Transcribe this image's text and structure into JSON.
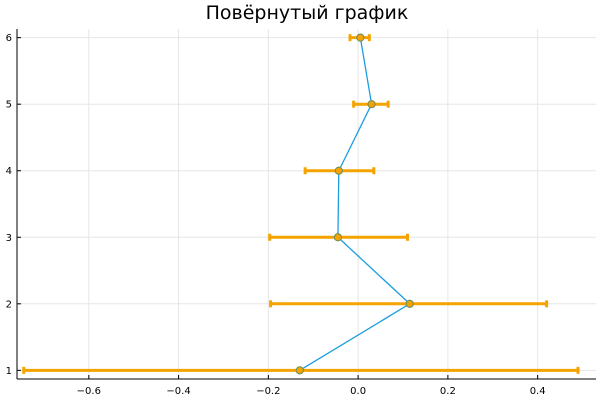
{
  "chart_data": {
    "type": "line",
    "title": "Повёрнутый график",
    "xlabel": "",
    "ylabel": "",
    "xlim": [
      -0.76,
      0.53
    ],
    "ylim": [
      0.87,
      6.13
    ],
    "x_ticks": [
      -0.6,
      -0.4,
      -0.2,
      0.0,
      0.2,
      0.4
    ],
    "x_tick_labels": [
      "−0.6",
      "−0.4",
      "−0.2",
      "0.0",
      "0.2",
      "0.4"
    ],
    "y_ticks": [
      1,
      2,
      3,
      4,
      5,
      6
    ],
    "y_tick_labels": [
      "1",
      "2",
      "3",
      "4",
      "5",
      "6"
    ],
    "grid": true,
    "legend": "none",
    "colors": {
      "line": "#1b9ee0",
      "errorbar": "#f5a300",
      "marker_fill": "#f5a300",
      "marker_edge": "#6b8c5a"
    },
    "series": [
      {
        "points": [
          {
            "x": -0.13,
            "y": 1,
            "xerr_low": -0.745,
            "xerr_high": 0.49
          },
          {
            "x": 0.115,
            "y": 2,
            "xerr_low": -0.195,
            "xerr_high": 0.42
          },
          {
            "x": -0.045,
            "y": 3,
            "xerr_low": -0.197,
            "xerr_high": 0.11
          },
          {
            "x": -0.043,
            "y": 4,
            "xerr_low": -0.118,
            "xerr_high": 0.035
          },
          {
            "x": 0.03,
            "y": 5,
            "xerr_low": -0.01,
            "xerr_high": 0.067
          },
          {
            "x": 0.005,
            "y": 6,
            "xerr_low": -0.018,
            "xerr_high": 0.025
          }
        ]
      }
    ]
  }
}
